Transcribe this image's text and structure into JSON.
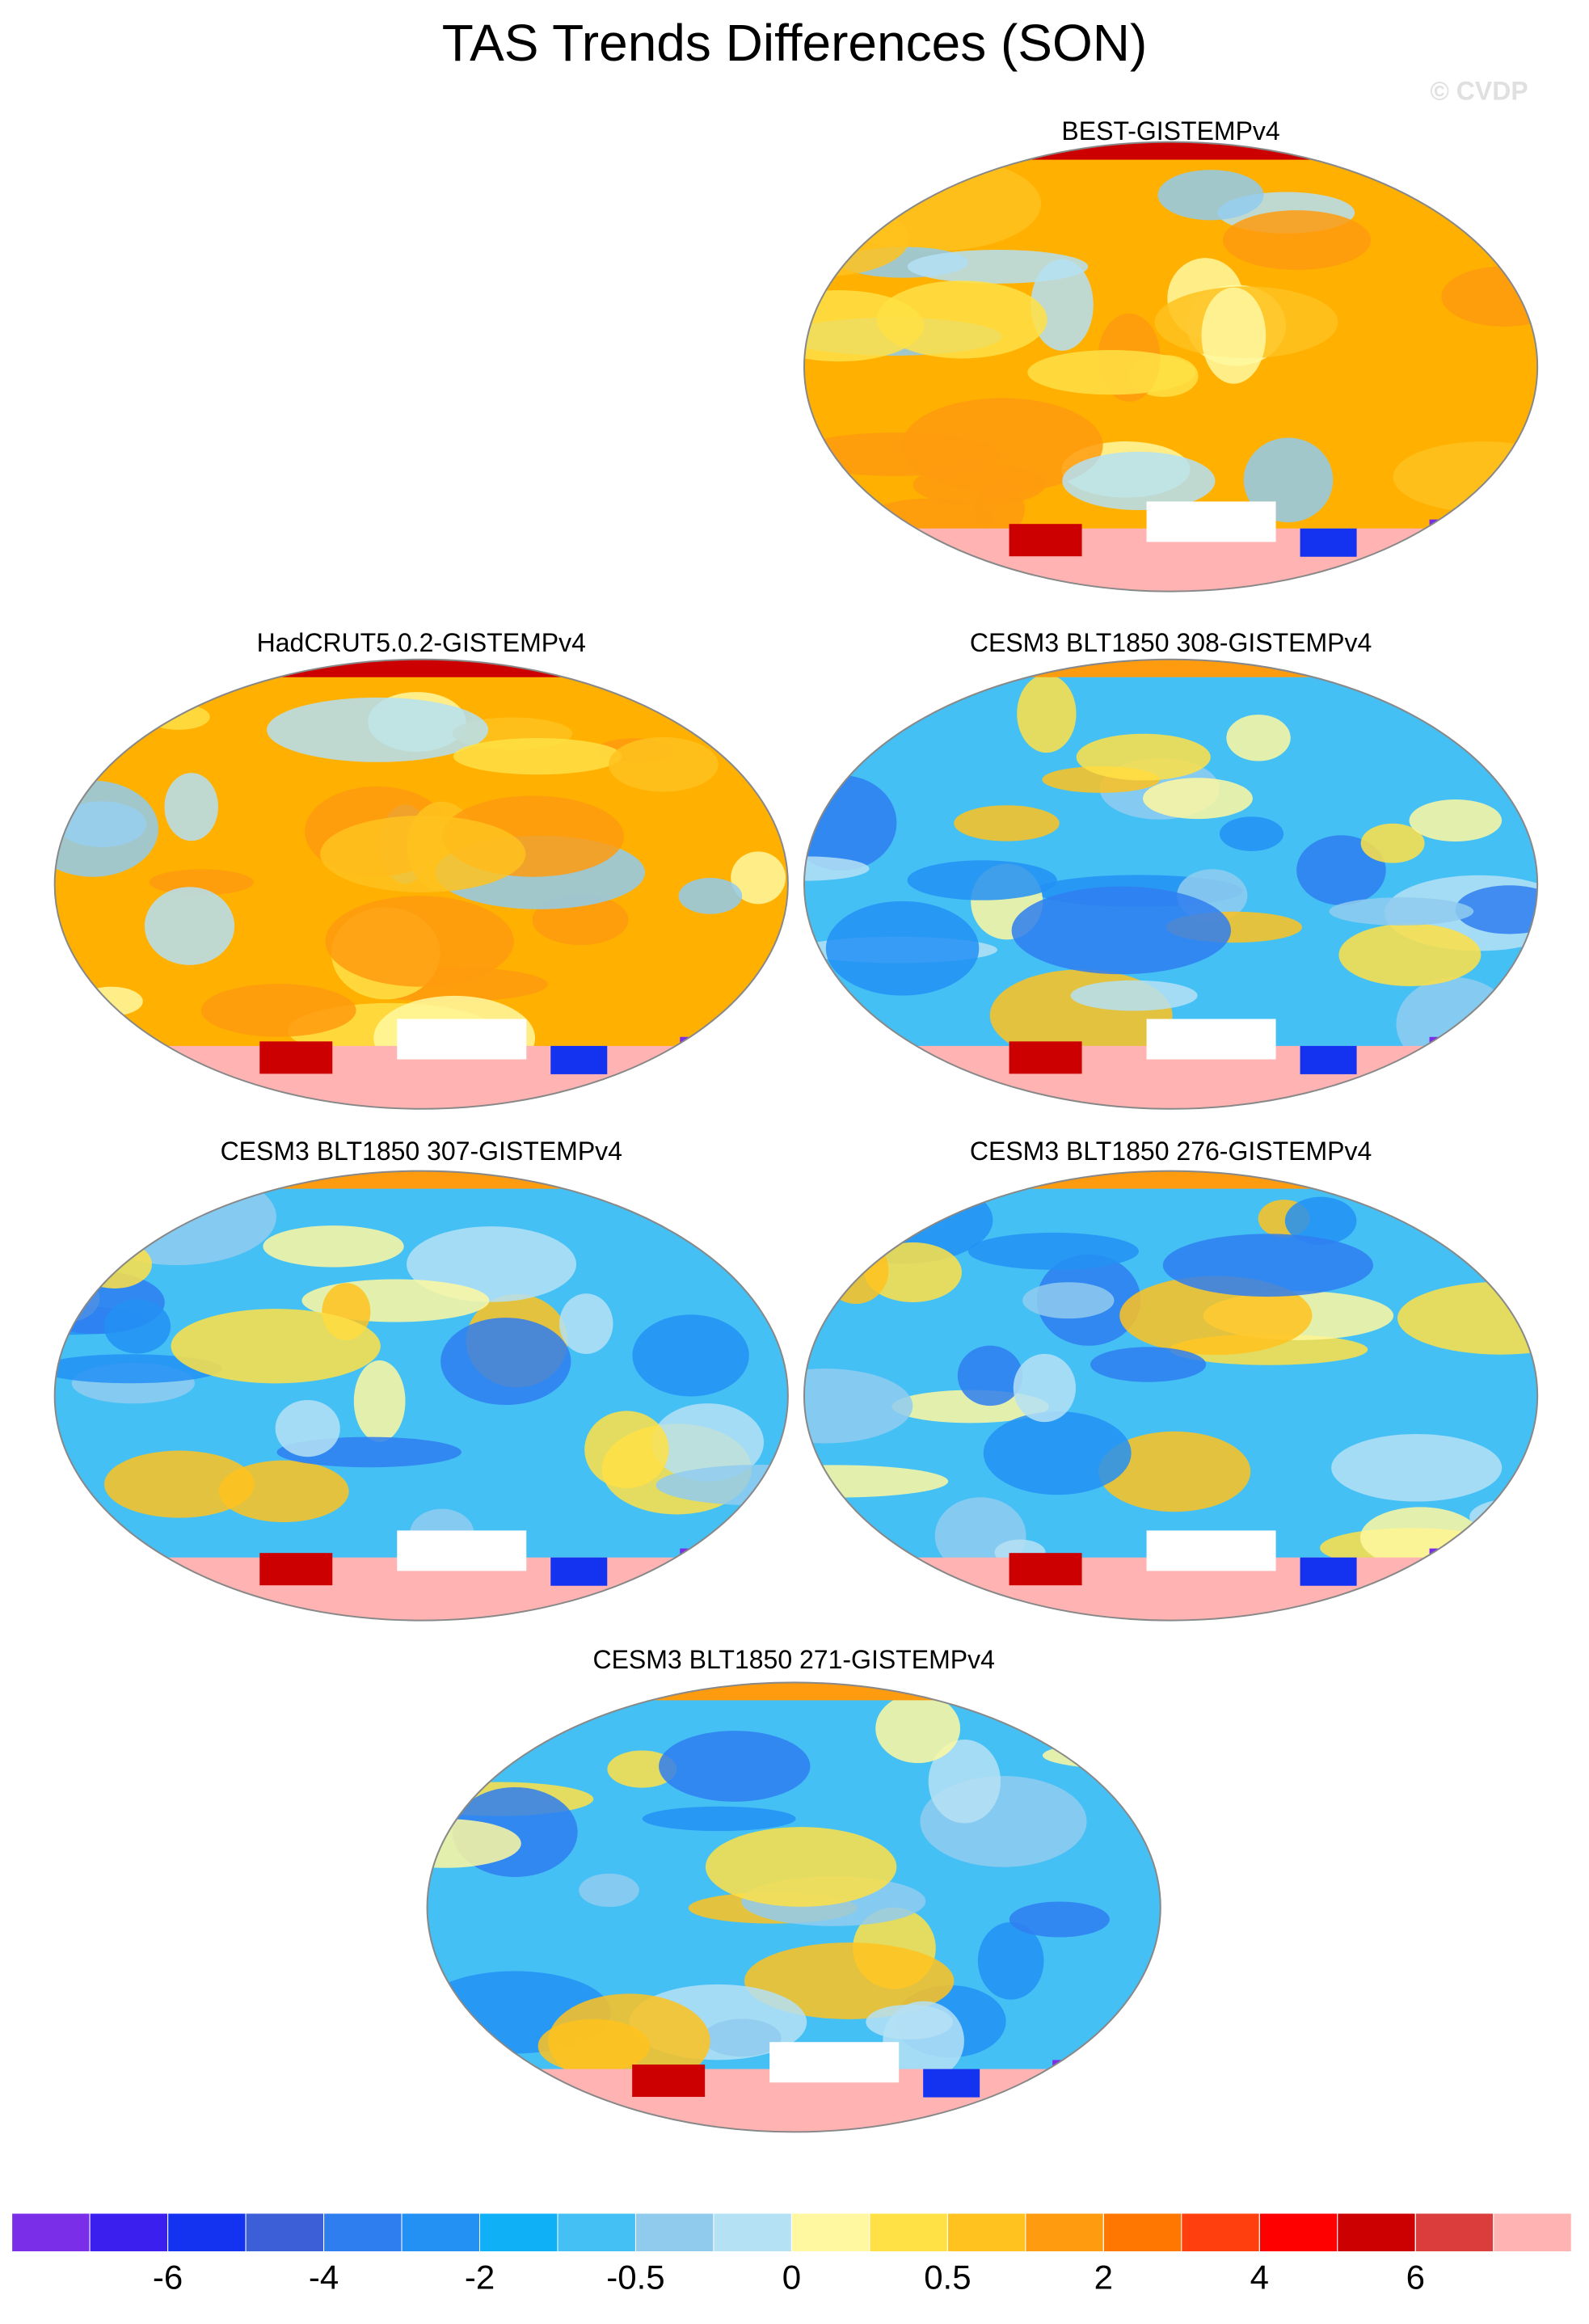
{
  "title": "TAS Trends Differences (SON)",
  "watermark": "© CVDP",
  "panels": [
    {
      "title": "BEST-GISTEMPv4"
    },
    {
      "title": "HadCRUT5.0.2-GISTEMPv4"
    },
    {
      "title": "CESM3 BLT1850 308-GISTEMPv4"
    },
    {
      "title": "CESM3 BLT1850 307-GISTEMPv4"
    },
    {
      "title": "CESM3 BLT1850 276-GISTEMPv4"
    },
    {
      "title": "CESM3 BLT1850 271-GISTEMPv4"
    }
  ],
  "colorbar": {
    "colors": [
      "#7b2ee8",
      "#3a1fef",
      "#1433f0",
      "#3c5fd8",
      "#2f7ef0",
      "#2391f4",
      "#0fb0f5",
      "#45c0f5",
      "#90cbee",
      "#b5e1f5",
      "#fff8a0",
      "#ffe045",
      "#ffc21e",
      "#ff9b0f",
      "#ff7600",
      "#ff3f0e",
      "#ff0000",
      "#cc0000",
      "#db3d3d",
      "#ffb3b3"
    ],
    "levels": [
      -6,
      -4,
      -2,
      -0.5,
      0,
      0.5,
      2,
      4,
      6
    ]
  }
}
